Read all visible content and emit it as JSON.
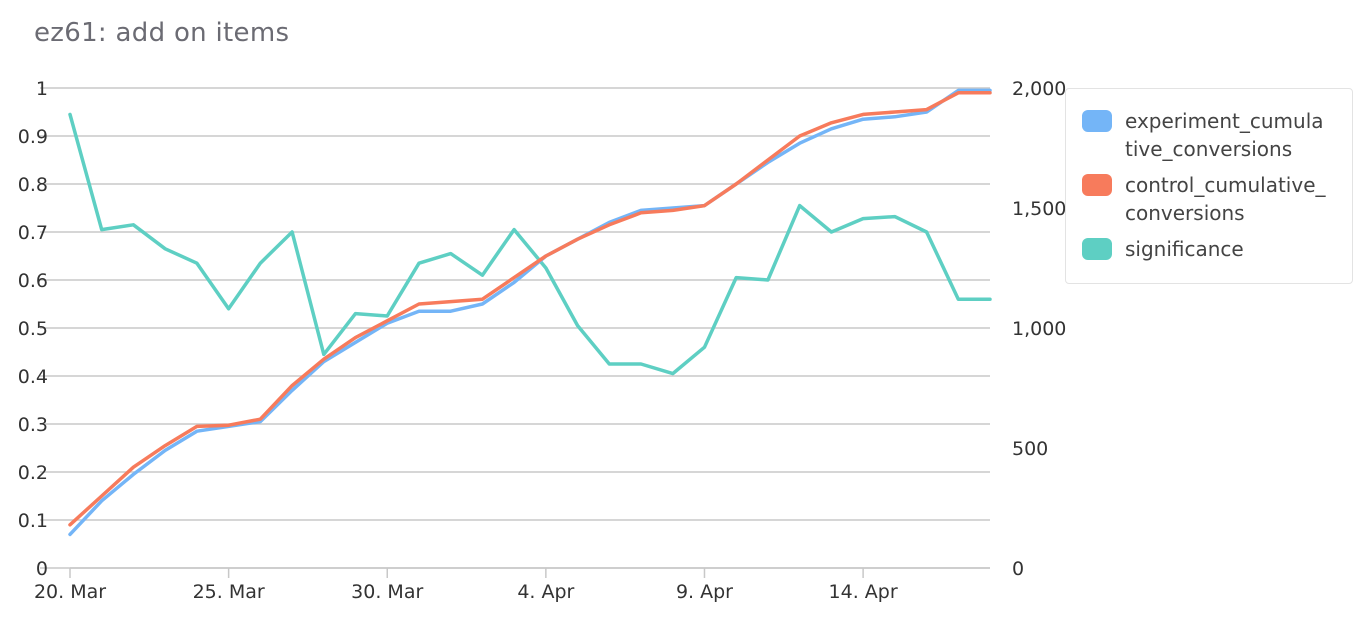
{
  "title": "ez61: add on items",
  "chart_data": {
    "type": "line",
    "x": [
      "20. Mar",
      "21. Mar",
      "22. Mar",
      "23. Mar",
      "24. Mar",
      "25. Mar",
      "26. Mar",
      "27. Mar",
      "28. Mar",
      "29. Mar",
      "30. Mar",
      "31. Mar",
      "1. Apr",
      "2. Apr",
      "3. Apr",
      "4. Apr",
      "5. Apr",
      "6. Apr",
      "7. Apr",
      "8. Apr",
      "9. Apr",
      "10. Apr",
      "11. Apr",
      "12. Apr",
      "13. Apr",
      "14. Apr",
      "15. Apr",
      "16. Apr",
      "17. Apr",
      "18. Apr"
    ],
    "x_tick_labels": [
      "20. Mar",
      "25. Mar",
      "30. Mar",
      "4. Apr",
      "9. Apr",
      "14. Apr"
    ],
    "y_left": {
      "ylim": [
        0,
        1
      ],
      "ticks": [
        "0",
        "0.1",
        "0.2",
        "0.3",
        "0.4",
        "0.5",
        "0.6",
        "0.7",
        "0.8",
        "0.9",
        "1"
      ]
    },
    "y_right": {
      "ylim": [
        0,
        2000
      ],
      "ticks": [
        "0",
        "500",
        "1,000",
        "1,500",
        "2,000"
      ]
    },
    "grid": true,
    "legend_position": "right",
    "series": [
      {
        "name": "experiment_cumulative_conversions",
        "color": "#74b5f7",
        "axis": "right",
        "values": [
          140,
          280,
          390,
          490,
          570,
          590,
          610,
          740,
          860,
          940,
          1020,
          1070,
          1070,
          1100,
          1190,
          1300,
          1370,
          1440,
          1490,
          1500,
          1510,
          1600,
          1690,
          1770,
          1830,
          1870,
          1880,
          1900,
          1990,
          1990
        ]
      },
      {
        "name": "control_cumulative_conversions",
        "color": "#f77b5c",
        "axis": "right",
        "values": [
          180,
          300,
          420,
          510,
          590,
          595,
          620,
          760,
          870,
          960,
          1030,
          1100,
          1110,
          1120,
          1210,
          1300,
          1370,
          1430,
          1480,
          1490,
          1510,
          1600,
          1700,
          1800,
          1855,
          1890,
          1900,
          1910,
          1980,
          1980
        ]
      },
      {
        "name": "significance",
        "color": "#5ecfc3",
        "axis": "left",
        "values": [
          0.945,
          0.705,
          0.715,
          0.665,
          0.635,
          0.54,
          0.635,
          0.7,
          0.445,
          0.53,
          0.525,
          0.635,
          0.655,
          0.61,
          0.705,
          0.625,
          0.505,
          0.425,
          0.425,
          0.405,
          0.46,
          0.605,
          0.6,
          0.755,
          0.7,
          0.728,
          0.732,
          0.7,
          0.56,
          0.56
        ]
      }
    ]
  }
}
